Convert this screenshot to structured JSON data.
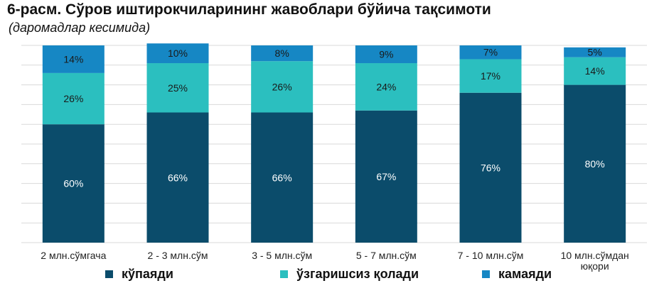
{
  "chart_data": {
    "type": "bar",
    "stacked": true,
    "title": "6-расм. Сўров иштирокчиларининг жавоблари бўйича тақсимоти",
    "subtitle": "(даромадлар кесимида)",
    "categories": [
      [
        "2 млн.сўмгача"
      ],
      [
        "2 - 3 млн.сўм"
      ],
      [
        "3 - 5 млн.сўм"
      ],
      [
        "5 - 7 млн.сўм"
      ],
      [
        "7 - 10 млн.сўм"
      ],
      [
        "10 млн.сўмдан",
        "юқори"
      ]
    ],
    "series": [
      {
        "name": "кўпаяди",
        "color": "#0b4c6b",
        "labelColor": "#ffffff",
        "values": [
          60,
          66,
          66,
          67,
          76,
          80
        ]
      },
      {
        "name": "ўзгаришсиз қолади",
        "color": "#2bbfbf",
        "labelColor": "#1a1a1a",
        "values": [
          26,
          25,
          26,
          24,
          17,
          14
        ]
      },
      {
        "name": "камаяди",
        "color": "#1687c4",
        "labelColor": "#1a1a1a",
        "values": [
          14,
          10,
          8,
          9,
          7,
          5
        ]
      }
    ],
    "unit": "%",
    "ylim": [
      0,
      100
    ],
    "grid": true,
    "legend_position": "bottom"
  }
}
